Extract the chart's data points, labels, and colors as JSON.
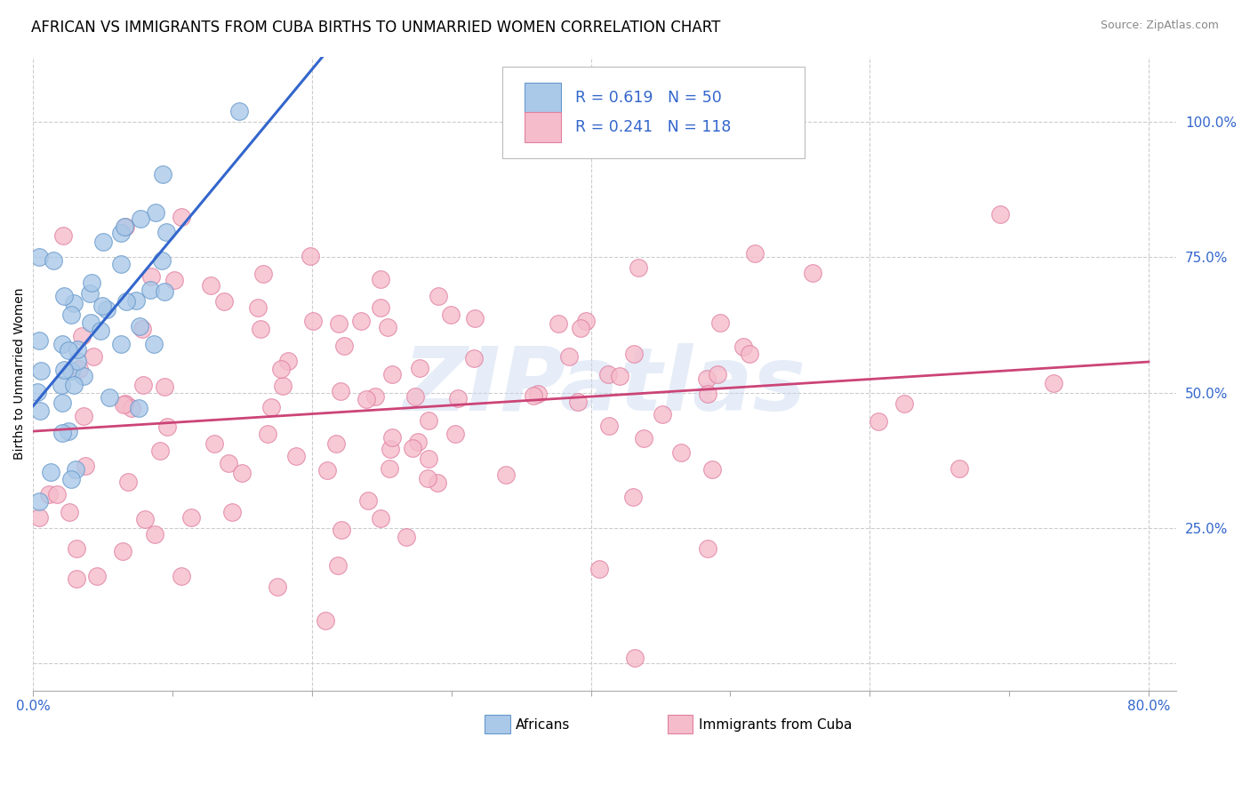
{
  "title": "AFRICAN VS IMMIGRANTS FROM CUBA BIRTHS TO UNMARRIED WOMEN CORRELATION CHART",
  "source": "Source: ZipAtlas.com",
  "ylabel": "Births to Unmarried Women",
  "xlim": [
    0.0,
    0.82
  ],
  "ylim": [
    -0.05,
    1.12
  ],
  "y_ticks": [
    0.0,
    0.25,
    0.5,
    0.75,
    1.0
  ],
  "y_tick_labels": [
    "",
    "25.0%",
    "50.0%",
    "75.0%",
    "100.0%"
  ],
  "x_ticks": [
    0.0,
    0.1,
    0.2,
    0.3,
    0.4,
    0.5,
    0.6,
    0.7,
    0.8
  ],
  "x_tick_labels": [
    "0.0%",
    "",
    "",
    "",
    "",
    "",
    "",
    "",
    "80.0%"
  ],
  "african_R": 0.619,
  "african_N": 50,
  "cuba_R": 0.241,
  "cuba_N": 118,
  "legend_labels": [
    "Africans",
    "Immigrants from Cuba"
  ],
  "african_color": "#aac8e8",
  "african_edge": "#6699cc",
  "cuba_color": "#f5bccb",
  "cuba_edge": "#e080a0",
  "line_african_color": "#3366cc",
  "line_cuba_color": "#cc4477",
  "background_color": "#ffffff",
  "grid_color": "#cccccc",
  "title_fontsize": 12,
  "source_fontsize": 9,
  "axis_label_fontsize": 10,
  "tick_fontsize": 11,
  "tick_color": "#3366cc",
  "watermark_text": "ZIPatlas",
  "watermark_color": "#c8d8f0",
  "watermark_alpha": 0.45
}
